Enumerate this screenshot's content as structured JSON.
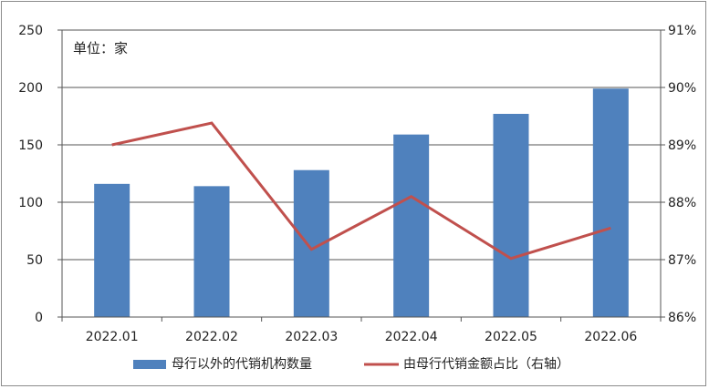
{
  "chart_data": {
    "type": "bar+line",
    "unit_label": "单位：家",
    "categories": [
      "2022.01",
      "2022.02",
      "2022.03",
      "2022.04",
      "2022.05",
      "2022.06"
    ],
    "left_axis": {
      "ylim": [
        0,
        250
      ],
      "ticks": [
        "0",
        "50",
        "100",
        "150",
        "200",
        "250"
      ]
    },
    "right_axis": {
      "ylim": [
        86,
        91
      ],
      "ticks": [
        "86%",
        "87%",
        "88%",
        "89%",
        "90%",
        "91%"
      ]
    },
    "series": [
      {
        "name": "母行以外的代销机构数量",
        "kind": "bar",
        "axis": "left",
        "color": "#4f81bd",
        "values": [
          116,
          114,
          128,
          159,
          177,
          199
        ]
      },
      {
        "name": "由母行代销金额占比（右轴）",
        "kind": "line",
        "axis": "right",
        "color": "#c0504d",
        "values": [
          89.0,
          89.38,
          87.18,
          88.1,
          87.02,
          87.55
        ]
      }
    ],
    "grid": true,
    "legend_position": "bottom"
  }
}
